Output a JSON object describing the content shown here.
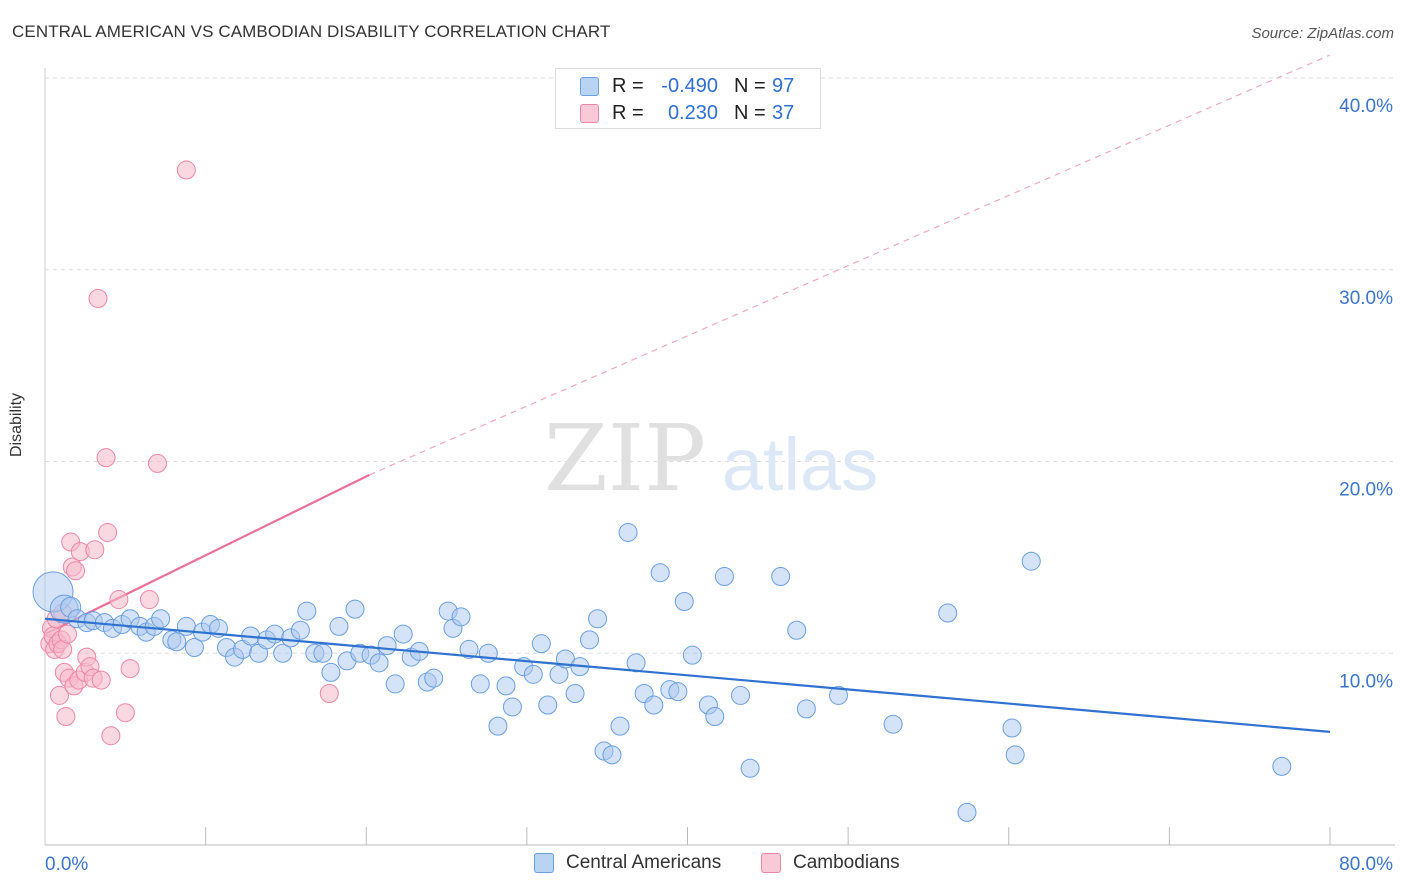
{
  "title": "CENTRAL AMERICAN VS CAMBODIAN DISABILITY CORRELATION CHART",
  "source": "Source: ZipAtlas.com",
  "watermark": {
    "zip": "ZIP",
    "atlas": "atlas"
  },
  "colors": {
    "blue_fill": "#a9c8f0",
    "blue_stroke": "#6a9fe0",
    "blue_line": "#2f72d0",
    "pink_fill": "#f6b8cb",
    "pink_stroke": "#ec86a6",
    "pink_line": "#e8709a",
    "axis_text": "#3b74c8",
    "grid": "#dddddd"
  },
  "legend": {
    "rows": [
      {
        "r_label": "R =",
        "r_value": "-0.490",
        "n_label": "N =",
        "n_value": "97",
        "color": "blue"
      },
      {
        "r_label": "R =",
        "r_value": "0.230",
        "n_label": "N =",
        "n_value": "37",
        "color": "pink"
      }
    ]
  },
  "bottom_legend": [
    {
      "label": "Central Americans",
      "color": "blue"
    },
    {
      "label": "Cambodians",
      "color": "pink"
    }
  ],
  "chart_data": {
    "type": "scatter",
    "title": "CENTRAL AMERICAN VS CAMBODIAN DISABILITY CORRELATION CHART",
    "xlabel": "",
    "ylabel": "Disability",
    "xlim": [
      0,
      80
    ],
    "ylim": [
      0,
      40
    ],
    "x_tick_labels": [
      "0.0%",
      "80.0%"
    ],
    "y_tick_labels": [
      "10.0%",
      "20.0%",
      "30.0%",
      "40.0%"
    ],
    "y_ticks": [
      10,
      20,
      30,
      40
    ],
    "grid": true,
    "legend_position": "top-center",
    "series": [
      {
        "name": "Central Americans",
        "color": "blue",
        "r": -0.49,
        "n": 97,
        "trend": {
          "x": [
            0,
            80
          ],
          "y": [
            11.8,
            5.9
          ]
        },
        "points": [
          [
            0.5,
            13.2,
            20
          ],
          [
            1.2,
            12.3,
            14
          ],
          [
            1.6,
            12.4,
            10
          ],
          [
            2.0,
            11.8,
            9
          ],
          [
            2.6,
            11.6,
            9
          ],
          [
            3.0,
            11.7,
            9
          ],
          [
            3.7,
            11.6,
            9
          ],
          [
            4.2,
            11.3,
            9
          ],
          [
            4.8,
            11.5,
            9
          ],
          [
            5.3,
            11.8,
            9
          ],
          [
            5.9,
            11.4,
            9
          ],
          [
            6.3,
            11.1,
            9
          ],
          [
            6.8,
            11.4,
            9
          ],
          [
            7.2,
            11.8,
            9
          ],
          [
            7.9,
            10.7,
            9
          ],
          [
            8.2,
            10.6,
            9
          ],
          [
            8.8,
            11.4,
            9
          ],
          [
            9.3,
            10.3,
            9
          ],
          [
            9.8,
            11.1,
            9
          ],
          [
            10.3,
            11.5,
            9
          ],
          [
            10.8,
            11.3,
            9
          ],
          [
            11.3,
            10.3,
            9
          ],
          [
            11.8,
            9.8,
            9
          ],
          [
            12.3,
            10.2,
            9
          ],
          [
            12.8,
            10.9,
            9
          ],
          [
            13.3,
            10.0,
            9
          ],
          [
            13.8,
            10.7,
            9
          ],
          [
            14.3,
            11.0,
            9
          ],
          [
            14.8,
            10.0,
            9
          ],
          [
            15.3,
            10.8,
            9
          ],
          [
            15.9,
            11.2,
            9
          ],
          [
            16.3,
            12.2,
            9
          ],
          [
            16.8,
            10.0,
            9
          ],
          [
            17.3,
            10.0,
            9
          ],
          [
            17.8,
            9.0,
            9
          ],
          [
            18.3,
            11.4,
            9
          ],
          [
            18.8,
            9.6,
            9
          ],
          [
            19.3,
            12.3,
            9
          ],
          [
            19.6,
            10.0,
            9
          ],
          [
            20.3,
            9.9,
            9
          ],
          [
            20.8,
            9.5,
            9
          ],
          [
            21.3,
            10.4,
            9
          ],
          [
            21.8,
            8.4,
            9
          ],
          [
            22.3,
            11.0,
            9
          ],
          [
            22.8,
            9.8,
            9
          ],
          [
            23.3,
            10.1,
            9
          ],
          [
            23.8,
            8.5,
            9
          ],
          [
            24.2,
            8.7,
            9
          ],
          [
            25.1,
            12.2,
            9
          ],
          [
            25.4,
            11.3,
            9
          ],
          [
            25.9,
            11.9,
            9
          ],
          [
            26.4,
            10.2,
            9
          ],
          [
            27.1,
            8.4,
            9
          ],
          [
            27.6,
            10.0,
            9
          ],
          [
            28.2,
            6.2,
            9
          ],
          [
            28.7,
            8.3,
            9
          ],
          [
            29.1,
            7.2,
            9
          ],
          [
            29.8,
            9.3,
            9
          ],
          [
            30.4,
            8.9,
            9
          ],
          [
            30.9,
            10.5,
            9
          ],
          [
            31.3,
            7.3,
            9
          ],
          [
            32.0,
            8.9,
            9
          ],
          [
            32.4,
            9.7,
            9
          ],
          [
            33.0,
            7.9,
            9
          ],
          [
            33.3,
            9.3,
            9
          ],
          [
            33.9,
            10.7,
            9
          ],
          [
            34.4,
            11.8,
            9
          ],
          [
            34.8,
            4.9,
            9
          ],
          [
            35.3,
            4.7,
            9
          ],
          [
            35.8,
            6.2,
            9
          ],
          [
            36.3,
            16.3,
            9
          ],
          [
            36.8,
            9.5,
            9
          ],
          [
            37.3,
            7.9,
            9
          ],
          [
            37.9,
            7.3,
            9
          ],
          [
            38.3,
            14.2,
            9
          ],
          [
            38.9,
            8.1,
            9
          ],
          [
            39.4,
            8.0,
            9
          ],
          [
            39.8,
            12.7,
            9
          ],
          [
            40.3,
            9.9,
            9
          ],
          [
            41.3,
            7.3,
            9
          ],
          [
            41.7,
            6.7,
            9
          ],
          [
            42.3,
            14.0,
            9
          ],
          [
            43.3,
            7.8,
            9
          ],
          [
            43.9,
            4.0,
            9
          ],
          [
            45.8,
            14.0,
            9
          ],
          [
            46.8,
            11.2,
            9
          ],
          [
            47.4,
            7.1,
            9
          ],
          [
            49.4,
            7.8,
            9
          ],
          [
            52.8,
            6.3,
            9
          ],
          [
            56.2,
            12.1,
            9
          ],
          [
            57.4,
            1.7,
            9
          ],
          [
            60.2,
            6.1,
            9
          ],
          [
            60.4,
            4.7,
            9
          ],
          [
            61.4,
            14.8,
            9
          ],
          [
            77.0,
            4.1,
            9
          ]
        ]
      },
      {
        "name": "Cambodians",
        "color": "pink",
        "r": 0.23,
        "n": 37,
        "trend": {
          "x": [
            0,
            20.2
          ],
          "y": [
            11.0,
            19.3
          ]
        },
        "trend_extension": {
          "x": [
            20.2,
            80
          ],
          "y": [
            19.3,
            41.2
          ]
        },
        "points": [
          [
            0.3,
            10.5,
            9
          ],
          [
            0.4,
            11.3,
            9
          ],
          [
            0.5,
            10.9,
            9
          ],
          [
            0.6,
            10.2,
            9
          ],
          [
            0.7,
            11.8,
            9
          ],
          [
            0.8,
            10.5,
            9
          ],
          [
            0.9,
            7.8,
            9
          ],
          [
            1.0,
            10.7,
            9
          ],
          [
            1.1,
            10.2,
            9
          ],
          [
            1.2,
            9.0,
            9
          ],
          [
            1.3,
            6.7,
            9
          ],
          [
            1.4,
            11.0,
            9
          ],
          [
            1.5,
            8.7,
            9
          ],
          [
            1.6,
            15.8,
            9
          ],
          [
            1.7,
            14.5,
            9
          ],
          [
            1.8,
            8.3,
            9
          ],
          [
            1.9,
            14.3,
            9
          ],
          [
            2.1,
            8.6,
            9
          ],
          [
            2.2,
            15.3,
            9
          ],
          [
            2.5,
            9.0,
            9
          ],
          [
            2.6,
            9.8,
            9
          ],
          [
            2.8,
            9.3,
            9
          ],
          [
            3.0,
            8.7,
            9
          ],
          [
            3.1,
            15.4,
            9
          ],
          [
            3.3,
            28.5,
            9
          ],
          [
            3.5,
            8.6,
            9
          ],
          [
            3.8,
            20.2,
            9
          ],
          [
            3.9,
            16.3,
            9
          ],
          [
            4.1,
            5.7,
            9
          ],
          [
            4.6,
            12.8,
            9
          ],
          [
            5.0,
            6.9,
            9
          ],
          [
            5.3,
            9.2,
            9
          ],
          [
            6.5,
            12.8,
            9
          ],
          [
            7.0,
            19.9,
            9
          ],
          [
            8.8,
            35.2,
            9
          ],
          [
            17.7,
            7.9,
            9
          ],
          [
            1.1,
            12.1,
            9
          ]
        ]
      }
    ]
  }
}
